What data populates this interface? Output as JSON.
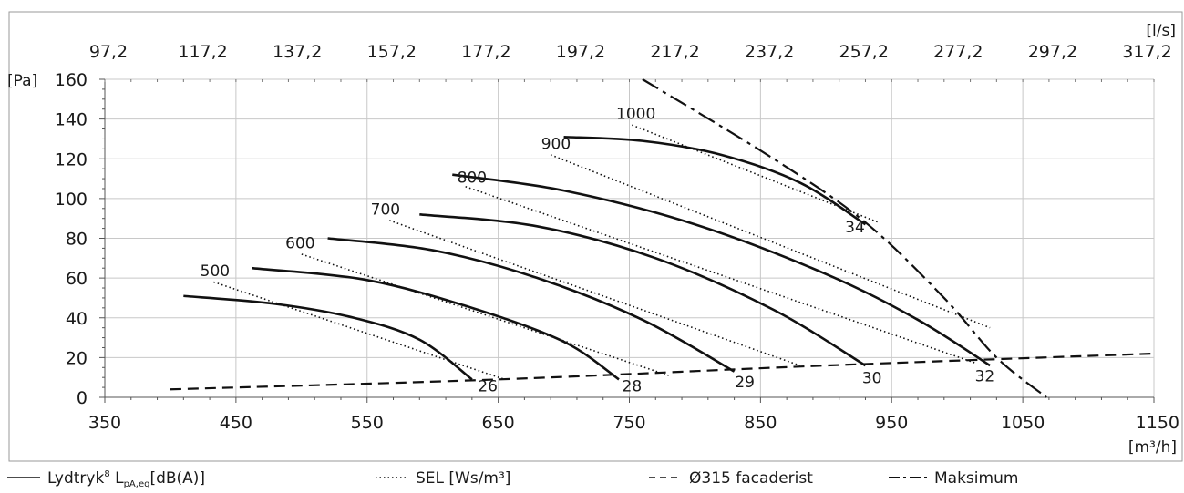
{
  "chart_data": {
    "type": "line",
    "x_axis": {
      "min": 350,
      "max": 1150,
      "ticks": [
        350,
        450,
        550,
        650,
        750,
        850,
        950,
        1050,
        1150
      ],
      "tick_labels": [
        "350",
        "450",
        "550",
        "650",
        "750",
        "850",
        "950",
        "1050",
        "1150"
      ],
      "minor_step": 20,
      "unit": "[m³/h]"
    },
    "x2_axis": {
      "tick_labels": [
        "97,2",
        "117,2",
        "137,2",
        "157,2",
        "177,2",
        "197,2",
        "217,2",
        "237,2",
        "257,2",
        "277,2",
        "297,2",
        "317,2"
      ],
      "tick_positions_m3h": [
        350,
        422,
        494,
        566,
        638,
        710,
        782,
        854,
        926,
        998,
        1070,
        1142
      ],
      "unit": "[l/s]"
    },
    "y_axis": {
      "min": 0,
      "max": 160,
      "ticks": [
        0,
        20,
        40,
        60,
        80,
        100,
        120,
        140,
        160
      ],
      "tick_labels": [
        "0",
        "20",
        "40",
        "60",
        "80",
        "100",
        "120",
        "140",
        "160"
      ],
      "minor_step": 5,
      "unit": "[Pa]"
    },
    "grid": true,
    "series": [
      {
        "kind": "fan",
        "points": [
          [
            410,
            51
          ],
          [
            480,
            47
          ],
          [
            540,
            40
          ],
          [
            590,
            29
          ],
          [
            630,
            9
          ]
        ]
      },
      {
        "kind": "fan",
        "points": [
          [
            462,
            65
          ],
          [
            550,
            59
          ],
          [
            630,
            45
          ],
          [
            700,
            28
          ],
          [
            742,
            9
          ]
        ]
      },
      {
        "kind": "fan",
        "points": [
          [
            520,
            80
          ],
          [
            600,
            74
          ],
          [
            680,
            60
          ],
          [
            760,
            39
          ],
          [
            830,
            13
          ]
        ]
      },
      {
        "kind": "fan",
        "points": [
          [
            590,
            92
          ],
          [
            680,
            86
          ],
          [
            770,
            70
          ],
          [
            860,
            44
          ],
          [
            930,
            16
          ]
        ]
      },
      {
        "kind": "fan",
        "points": [
          [
            615,
            112
          ],
          [
            700,
            104
          ],
          [
            800,
            87
          ],
          [
            900,
            62
          ],
          [
            970,
            39
          ],
          [
            1025,
            16
          ]
        ]
      },
      {
        "kind": "fan",
        "points": [
          [
            700,
            131
          ],
          [
            760,
            129
          ],
          [
            820,
            122
          ],
          [
            880,
            108
          ],
          [
            930,
            87
          ]
        ]
      },
      {
        "kind": "sel",
        "label": "500",
        "points": [
          [
            433,
            58
          ],
          [
            655,
            9
          ]
        ]
      },
      {
        "kind": "sel",
        "label": "600",
        "points": [
          [
            500,
            72
          ],
          [
            780,
            11
          ]
        ]
      },
      {
        "kind": "sel",
        "label": "700",
        "points": [
          [
            567,
            89
          ],
          [
            880,
            16
          ]
        ]
      },
      {
        "kind": "sel",
        "label": "800",
        "points": [
          [
            625,
            106
          ],
          [
            1015,
            17
          ]
        ]
      },
      {
        "kind": "sel",
        "label": "900",
        "points": [
          [
            690,
            122
          ],
          [
            1025,
            35
          ]
        ]
      },
      {
        "kind": "sel",
        "label": "1000",
        "points": [
          [
            752,
            137
          ],
          [
            940,
            88
          ]
        ]
      },
      {
        "kind": "facade",
        "points": [
          [
            400,
            4
          ],
          [
            650,
            9
          ],
          [
            900,
            16
          ],
          [
            1150,
            22
          ]
        ]
      },
      {
        "kind": "max",
        "points": [
          [
            760,
            160
          ],
          [
            860,
            120
          ],
          [
            930,
            88
          ],
          [
            990,
            50
          ],
          [
            1030,
            20
          ],
          [
            1068,
            0
          ]
        ]
      }
    ],
    "curve_labels": [
      {
        "text": "26",
        "x": 642,
        "y": 3
      },
      {
        "text": "28",
        "x": 752,
        "y": 3
      },
      {
        "text": "29",
        "x": 838,
        "y": 5
      },
      {
        "text": "30",
        "x": 935,
        "y": 7
      },
      {
        "text": "32",
        "x": 1021,
        "y": 8
      },
      {
        "text": "34",
        "x": 922,
        "y": 83
      },
      {
        "text": "500",
        "x": 434,
        "y": 61
      },
      {
        "text": "600",
        "x": 499,
        "y": 75
      },
      {
        "text": "700",
        "x": 564,
        "y": 92
      },
      {
        "text": "800",
        "x": 630,
        "y": 108
      },
      {
        "text": "900",
        "x": 694,
        "y": 125
      },
      {
        "text": "1000",
        "x": 755,
        "y": 140
      }
    ]
  },
  "legend": [
    {
      "kind": "fan",
      "label": "Lydtryk",
      "sup": "8",
      "mid": " L",
      "sub": "pA,eq",
      "tail": "[dB(A)]"
    },
    {
      "kind": "sel",
      "label": "SEL [Ws/m³]"
    },
    {
      "kind": "facade",
      "label": "Ø315 facaderist"
    },
    {
      "kind": "max",
      "label": "Maksimum"
    }
  ]
}
